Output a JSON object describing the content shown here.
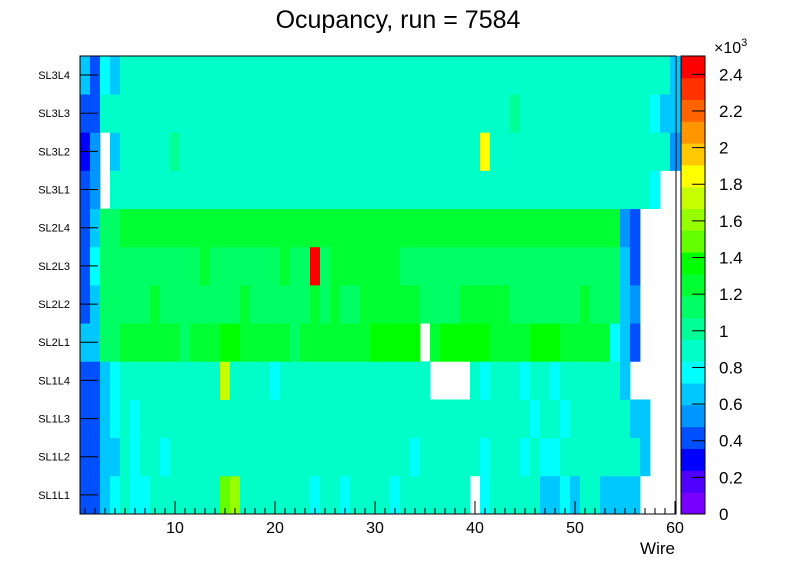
{
  "chart_data": {
    "type": "heatmap",
    "title": "Ocupancy, run = 7584",
    "xlabel": "Wire",
    "ylabel": "",
    "xlim": [
      0.5,
      60.5
    ],
    "x_ticks": [
      10,
      20,
      30,
      40,
      50,
      60
    ],
    "y_categories": [
      "SL1L1",
      "SL1L2",
      "SL1L3",
      "SL1L4",
      "SL2L1",
      "SL2L2",
      "SL2L3",
      "SL2L4",
      "SL3L1",
      "SL3L2",
      "SL3L3",
      "SL3L4"
    ],
    "zlim": [
      0,
      2500
    ],
    "z_ticks": [
      0,
      200,
      400,
      600,
      800,
      1000,
      1200,
      1400,
      1600,
      1800,
      2000,
      2200,
      2400
    ],
    "z_tick_labels": [
      "0",
      "0.2",
      "0.4",
      "0.6",
      "0.8",
      "1",
      "1.2",
      "1.4",
      "1.6",
      "1.8",
      "2",
      "2.2",
      "2.4"
    ],
    "z_multiplier": "×10",
    "z_multiplier_exp": "3",
    "palette": [
      "#7800ff",
      "#5000ff",
      "#0000ff",
      "#0050ff",
      "#0096ff",
      "#00c8ff",
      "#00ffff",
      "#00ffc8",
      "#00ff96",
      "#00ff64",
      "#00ff32",
      "#00ff00",
      "#64ff00",
      "#96ff00",
      "#c8ff00",
      "#ffff00",
      "#ffc800",
      "#ff9600",
      "#ff6400",
      "#ff3200",
      "#ff0000"
    ],
    "grid": false,
    "legend": "colorbar-right",
    "z": [
      [
        400,
        400,
        600,
        750,
        850,
        750,
        800,
        850,
        850,
        850,
        850,
        950,
        950,
        850,
        1450,
        1550,
        850,
        850,
        850,
        850,
        850,
        850,
        850,
        800,
        850,
        850,
        800,
        850,
        850,
        850,
        850,
        800,
        850,
        850,
        850,
        850,
        850,
        850,
        850,
        0,
        800,
        850,
        850,
        850,
        850,
        900,
        650,
        650,
        800,
        700,
        850,
        850,
        700,
        700,
        650,
        650,
        0,
        0,
        0,
        0
      ],
      [
        400,
        400,
        650,
        700,
        850,
        800,
        850,
        900,
        800,
        850,
        850,
        850,
        850,
        900,
        850,
        850,
        850,
        850,
        850,
        850,
        850,
        850,
        850,
        850,
        850,
        850,
        850,
        850,
        850,
        850,
        850,
        850,
        850,
        800,
        850,
        850,
        850,
        850,
        850,
        850,
        750,
        850,
        850,
        850,
        800,
        850,
        800,
        800,
        850,
        850,
        850,
        850,
        850,
        850,
        850,
        850,
        600,
        0,
        0,
        0
      ],
      [
        400,
        400,
        600,
        750,
        850,
        750,
        850,
        850,
        850,
        850,
        850,
        850,
        850,
        850,
        850,
        850,
        850,
        850,
        850,
        850,
        850,
        850,
        850,
        850,
        850,
        850,
        850,
        850,
        850,
        850,
        850,
        850,
        850,
        850,
        850,
        850,
        850,
        850,
        850,
        850,
        850,
        850,
        850,
        850,
        850,
        800,
        850,
        850,
        800,
        850,
        850,
        850,
        850,
        850,
        850,
        650,
        600,
        0,
        0,
        0
      ],
      [
        400,
        450,
        650,
        750,
        850,
        850,
        850,
        850,
        850,
        850,
        850,
        850,
        850,
        850,
        1750,
        850,
        850,
        850,
        850,
        800,
        850,
        850,
        850,
        850,
        850,
        850,
        850,
        850,
        850,
        850,
        850,
        850,
        850,
        850,
        850,
        0,
        0,
        0,
        0,
        850,
        800,
        850,
        850,
        850,
        800,
        850,
        850,
        800,
        850,
        850,
        850,
        850,
        850,
        850,
        700,
        0,
        0,
        0,
        0,
        0
      ],
      [
        600,
        700,
        1100,
        1100,
        1250,
        1250,
        1250,
        1250,
        1250,
        1300,
        1100,
        1250,
        1250,
        1250,
        1350,
        1350,
        1250,
        1250,
        1250,
        1250,
        1250,
        1100,
        1250,
        1250,
        1250,
        1300,
        1250,
        1300,
        1250,
        1350,
        1350,
        1350,
        1350,
        1350,
        0,
        1200,
        1350,
        1350,
        1350,
        1350,
        1350,
        1300,
        1250,
        1250,
        1200,
        1350,
        1350,
        1350,
        1250,
        1250,
        1250,
        1200,
        1250,
        800,
        600,
        400,
        0,
        0,
        0,
        0
      ],
      [
        400,
        600,
        1100,
        1100,
        1150,
        1150,
        1150,
        1250,
        1150,
        1150,
        1150,
        1150,
        1150,
        1150,
        1150,
        1150,
        1200,
        1150,
        1150,
        1150,
        1150,
        1150,
        1150,
        1200,
        1150,
        1250,
        1150,
        1150,
        1250,
        1300,
        1300,
        1300,
        1300,
        1300,
        1150,
        1150,
        1150,
        1150,
        1250,
        1300,
        1250,
        1300,
        1300,
        1150,
        1150,
        1150,
        1150,
        1150,
        1150,
        1150,
        1250,
        1150,
        1150,
        1150,
        700,
        500,
        0,
        0,
        0,
        0
      ],
      [
        400,
        800,
        1100,
        1100,
        1150,
        1150,
        1150,
        1150,
        1150,
        1150,
        1150,
        1150,
        1200,
        1150,
        1150,
        1150,
        1150,
        1150,
        1150,
        1150,
        1200,
        1150,
        1150,
        2450,
        1150,
        1300,
        1300,
        1300,
        1300,
        1300,
        1300,
        1300,
        1150,
        1150,
        1150,
        1150,
        1150,
        1150,
        1150,
        1150,
        1150,
        1150,
        1150,
        1150,
        1150,
        1150,
        1150,
        1150,
        1150,
        1150,
        1150,
        1150,
        1150,
        1150,
        600,
        400,
        0,
        0,
        0,
        0
      ],
      [
        400,
        600,
        1100,
        1100,
        1250,
        1250,
        1250,
        1250,
        1250,
        1250,
        1250,
        1250,
        1250,
        1300,
        1300,
        1250,
        1250,
        1250,
        1250,
        1250,
        1250,
        1250,
        1250,
        1250,
        1250,
        1250,
        1300,
        1300,
        1300,
        1250,
        1250,
        1250,
        1250,
        1250,
        1250,
        1250,
        1250,
        1250,
        1250,
        1250,
        1250,
        1250,
        1250,
        1250,
        1250,
        1250,
        1200,
        1250,
        1250,
        1250,
        1250,
        1250,
        1250,
        1250,
        500,
        400,
        0,
        0,
        0,
        0
      ],
      [
        400,
        500,
        0,
        850,
        950,
        950,
        950,
        950,
        950,
        950,
        950,
        950,
        950,
        950,
        950,
        950,
        950,
        950,
        950,
        950,
        950,
        950,
        950,
        950,
        950,
        950,
        950,
        950,
        950,
        950,
        950,
        950,
        950,
        950,
        950,
        950,
        950,
        950,
        950,
        950,
        950,
        950,
        950,
        950,
        950,
        950,
        950,
        950,
        950,
        950,
        950,
        950,
        950,
        950,
        950,
        950,
        950,
        800,
        0,
        0
      ],
      [
        300,
        500,
        0,
        600,
        950,
        950,
        850,
        950,
        950,
        1050,
        950,
        950,
        950,
        950,
        950,
        950,
        950,
        950,
        950,
        950,
        950,
        950,
        950,
        950,
        950,
        950,
        950,
        950,
        950,
        950,
        950,
        950,
        950,
        950,
        950,
        950,
        950,
        950,
        950,
        950,
        1800,
        950,
        950,
        950,
        950,
        950,
        950,
        950,
        950,
        950,
        950,
        950,
        950,
        950,
        950,
        950,
        950,
        950,
        950,
        500
      ],
      [
        400,
        400,
        850,
        950,
        950,
        950,
        950,
        950,
        950,
        950,
        950,
        950,
        950,
        950,
        950,
        950,
        950,
        950,
        950,
        950,
        950,
        950,
        950,
        950,
        950,
        950,
        950,
        950,
        950,
        950,
        950,
        950,
        950,
        950,
        950,
        950,
        950,
        950,
        950,
        950,
        950,
        950,
        950,
        1050,
        950,
        950,
        950,
        950,
        950,
        950,
        950,
        950,
        950,
        950,
        950,
        950,
        950,
        800,
        650,
        650
      ],
      [
        600,
        450,
        750,
        600,
        950,
        950,
        950,
        950,
        950,
        950,
        950,
        950,
        950,
        950,
        950,
        950,
        950,
        950,
        950,
        950,
        950,
        950,
        950,
        950,
        950,
        950,
        950,
        950,
        950,
        950,
        950,
        950,
        950,
        950,
        950,
        950,
        950,
        950,
        950,
        950,
        950,
        950,
        950,
        950,
        950,
        950,
        950,
        950,
        950,
        950,
        950,
        950,
        950,
        950,
        950,
        950,
        950,
        950,
        850,
        600
      ]
    ]
  }
}
